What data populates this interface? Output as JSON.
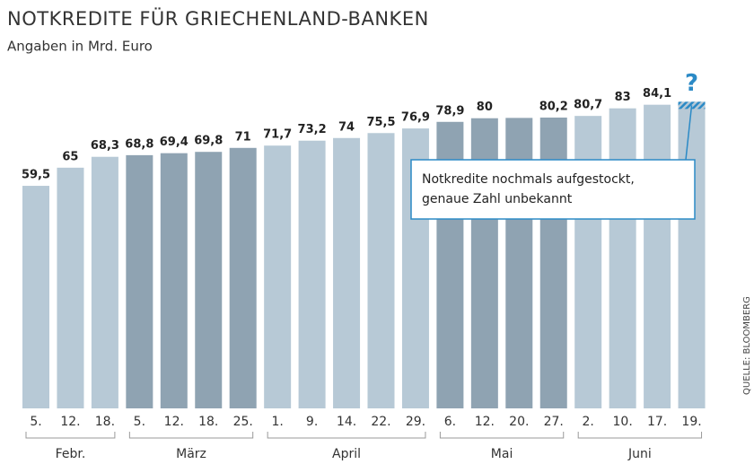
{
  "chart_data": {
    "type": "bar",
    "title": "NOTKREDITE FÜR GRIECHENLAND-BANKEN",
    "subtitle": "Angaben in Mrd. Euro",
    "source": "QUELLE: BLOOMBERG",
    "annotation": [
      "Notkredite nochmals aufgestockt,",
      "genaue Zahl unbekannt"
    ],
    "unknown_color": "#2b8ac6",
    "ylim": [
      -8,
      90
    ],
    "groups": [
      {
        "label": "Febr.",
        "color": "#b7c9d6",
        "categories": [
          "5.",
          "12.",
          "18."
        ],
        "values": [
          59.5,
          65,
          68.3
        ],
        "value_labels": [
          "59,5",
          "65",
          "68,3"
        ]
      },
      {
        "label": "März",
        "color": "#8fa3b2",
        "categories": [
          "5.",
          "12.",
          "18.",
          "25."
        ],
        "values": [
          68.8,
          69.4,
          69.8,
          71
        ],
        "value_labels": [
          "68,8",
          "69,4",
          "69,8",
          "71"
        ]
      },
      {
        "label": "April",
        "color": "#b7c9d6",
        "categories": [
          "1.",
          "9.",
          "14.",
          "22.",
          "29."
        ],
        "values": [
          71.7,
          73.2,
          74,
          75.5,
          76.9
        ],
        "value_labels": [
          "71,7",
          "73,2",
          "74",
          "75,5",
          "76,9"
        ]
      },
      {
        "label": "Mai",
        "color": "#8fa3b2",
        "categories": [
          "6.",
          "12.",
          "20.",
          "27."
        ],
        "values": [
          78.9,
          80,
          80.1,
          80.2
        ],
        "value_labels": [
          "78,9",
          "80",
          null,
          "80,2"
        ]
      },
      {
        "label": "Juni",
        "color": "#b7c9d6",
        "categories": [
          "2.",
          "10.",
          "17.",
          "19."
        ],
        "values": [
          80.7,
          83,
          84.1,
          85
        ],
        "value_labels": [
          "80,7",
          "83",
          "84,1",
          "?"
        ]
      }
    ]
  }
}
